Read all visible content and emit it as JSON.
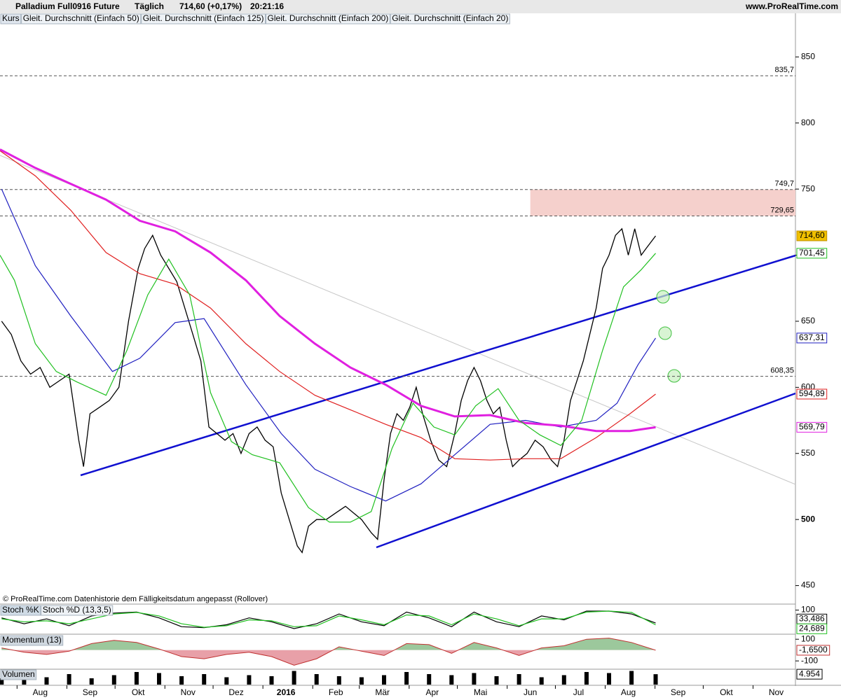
{
  "header": {
    "title": "Palladium Full0916 Future",
    "period": "Täglich",
    "quote": "714,60 (+0,17%)",
    "time": "20:21:16",
    "brand": "www.ProRealTime.com",
    "note": "© ProRealTime.com  Datenhistorie dem Fälligkeitsdatum angepasst (Rollover)"
  },
  "chart_data": [
    {
      "type": "line",
      "panel": "main",
      "xlim": [
        -25,
        470
      ],
      "ylim": [
        436,
        883
      ],
      "yticks": [
        450,
        500,
        550,
        600,
        650,
        700,
        750,
        800,
        850
      ],
      "xticks": [
        {
          "value": 0,
          "label": "Aug"
        },
        {
          "value": 31,
          "label": "Sep"
        },
        {
          "value": 61,
          "label": "Okt"
        },
        {
          "value": 92,
          "label": "Nov"
        },
        {
          "value": 122,
          "label": "Dez"
        },
        {
          "value": 153,
          "label": "2016"
        },
        {
          "value": 184,
          "label": "Feb"
        },
        {
          "value": 213,
          "label": "Mär"
        },
        {
          "value": 244,
          "label": "Apr"
        },
        {
          "value": 274,
          "label": "Mai"
        },
        {
          "value": 305,
          "label": "Jun"
        },
        {
          "value": 335,
          "label": "Jul"
        },
        {
          "value": 366,
          "label": "Aug"
        },
        {
          "value": 397,
          "label": "Sep"
        },
        {
          "value": 427,
          "label": "Okt"
        },
        {
          "value": 458,
          "label": "Nov"
        }
      ],
      "levels": [
        {
          "value": 835.7,
          "label": "835,7"
        },
        {
          "value": 749.7,
          "label": "749,7"
        },
        {
          "value": 729.65,
          "label": "729,65"
        },
        {
          "value": 608.35,
          "label": "608,35"
        }
      ],
      "zone_start": 305,
      "series": [
        {
          "name": "Kurs",
          "color": "#000000",
          "end_label": "714,60",
          "x": [
            -24,
            -18,
            -12,
            -6,
            0,
            6,
            12,
            18,
            24,
            27,
            31,
            37,
            43,
            49,
            55,
            61,
            65,
            70,
            75,
            80,
            85,
            90,
            95,
            100,
            105,
            110,
            115,
            120,
            125,
            130,
            135,
            140,
            145,
            150,
            155,
            160,
            163,
            167,
            172,
            178,
            184,
            190,
            195,
            200,
            206,
            210,
            214,
            218,
            222,
            226,
            230,
            234,
            238,
            243,
            248,
            253,
            258,
            262,
            266,
            270,
            274,
            278,
            282,
            286,
            290,
            294,
            298,
            303,
            308,
            313,
            318,
            322,
            326,
            330,
            334,
            338,
            342,
            346,
            350,
            354,
            358,
            362,
            366,
            370,
            374,
            377,
            383
          ],
          "values": [
            650,
            640,
            620,
            610,
            615,
            600,
            605,
            610,
            560,
            540,
            580,
            585,
            590,
            600,
            650,
            690,
            705,
            715,
            700,
            690,
            680,
            660,
            640,
            620,
            570,
            565,
            560,
            565,
            550,
            565,
            570,
            560,
            555,
            520,
            500,
            480,
            475,
            495,
            500,
            500,
            505,
            510,
            505,
            500,
            490,
            485,
            530,
            565,
            580,
            575,
            585,
            600,
            580,
            560,
            545,
            540,
            565,
            590,
            605,
            615,
            605,
            590,
            580,
            585,
            560,
            540,
            545,
            550,
            560,
            555,
            545,
            540,
            560,
            590,
            605,
            620,
            640,
            660,
            690,
            700,
            715,
            720,
            700,
            720,
            700,
            705,
            714.6
          ]
        },
        {
          "name": "Gleit. Durchschnitt (Einfach 50)",
          "color": "#2020c0",
          "end_label": "637,31",
          "x": [
            -24,
            -3,
            19,
            45,
            62,
            84,
            102,
            128,
            150,
            171,
            193,
            215,
            237,
            258,
            280,
            302,
            324,
            346,
            359,
            372,
            383
          ],
          "values": [
            750,
            692,
            654,
            612,
            622,
            649,
            652,
            602,
            565,
            538,
            525,
            514,
            527,
            549,
            572,
            575,
            570,
            575,
            588,
            617,
            637.31
          ]
        },
        {
          "name": "Gleit. Durchschnitt (Einfach 125)",
          "color": "#e02020",
          "end_label": "594,89",
          "x": [
            -25,
            -3,
            19,
            41,
            62,
            84,
            106,
            128,
            149,
            171,
            193,
            215,
            237,
            258,
            280,
            302,
            324,
            346,
            367,
            383
          ],
          "values": [
            779,
            760,
            734,
            702,
            686,
            678,
            660,
            633,
            612,
            594,
            583,
            572,
            562,
            546,
            545,
            546,
            546,
            562,
            580,
            594.89
          ]
        },
        {
          "name": "Gleit. Durchschnitt (Einfach 200)",
          "color": "#e020e0",
          "end_label": "569,79",
          "x": [
            -25,
            -3,
            19,
            41,
            62,
            84,
            106,
            128,
            149,
            171,
            193,
            215,
            237,
            258,
            280,
            302,
            324,
            346,
            367,
            383
          ],
          "values": [
            780,
            766,
            754,
            742,
            726,
            718,
            702,
            681,
            654,
            633,
            615,
            602,
            586,
            578,
            579,
            573,
            571,
            567,
            567,
            569.79
          ]
        },
        {
          "name": "Gleit. Durchschnitt (Einfach 20)",
          "color": "#20c020",
          "end_label": "701,45",
          "x": [
            -25,
            -16,
            -3,
            10,
            23,
            41,
            54,
            67,
            80,
            93,
            106,
            119,
            132,
            149,
            167,
            180,
            193,
            206,
            219,
            232,
            245,
            258,
            271,
            285,
            298,
            311,
            324,
            337,
            350,
            363,
            374,
            383
          ],
          "values": [
            700,
            681,
            633,
            612,
            604,
            594,
            628,
            670,
            697,
            670,
            596,
            559,
            549,
            543,
            509,
            498,
            498,
            506,
            554,
            588,
            570,
            564,
            586,
            599,
            575,
            564,
            556,
            575,
            628,
            676,
            689,
            701.45
          ]
        }
      ]
    },
    {
      "type": "line",
      "panel": "stoch",
      "xlim": [
        -25,
        470
      ],
      "ylim": [
        -20,
        120
      ],
      "yticks": [
        100
      ],
      "series": [
        {
          "name": "Stoch %K",
          "color": "#000000",
          "end_label": "33,486",
          "x": [
            -24,
            -10,
            4,
            18,
            32,
            46,
            60,
            74,
            88,
            102,
            116,
            130,
            144,
            158,
            172,
            186,
            200,
            214,
            228,
            242,
            256,
            270,
            284,
            298,
            312,
            326,
            340,
            354,
            368,
            383
          ],
          "values": [
            60,
            30,
            55,
            20,
            70,
            85,
            90,
            60,
            15,
            10,
            25,
            60,
            40,
            5,
            30,
            80,
            40,
            20,
            90,
            60,
            15,
            90,
            40,
            15,
            70,
            50,
            95,
            95,
            80,
            33.486
          ]
        },
        {
          "name": "Stoch %D (13,3,5)",
          "color": "#20c020",
          "end_label": "24,689",
          "x": [
            -24,
            -10,
            4,
            18,
            32,
            46,
            60,
            74,
            88,
            102,
            116,
            130,
            144,
            158,
            172,
            186,
            200,
            214,
            228,
            242,
            256,
            270,
            284,
            298,
            312,
            326,
            340,
            354,
            368,
            383
          ],
          "values": [
            55,
            40,
            45,
            30,
            55,
            80,
            88,
            70,
            30,
            12,
            20,
            50,
            45,
            15,
            20,
            70,
            50,
            25,
            75,
            70,
            25,
            80,
            55,
            20,
            55,
            55,
            90,
            95,
            88,
            24.689
          ]
        }
      ]
    },
    {
      "type": "area",
      "panel": "momentum",
      "xlim": [
        -25,
        470
      ],
      "ylim": [
        -170,
        140
      ],
      "yticks": [
        100,
        -100
      ],
      "series": [
        {
          "name": "Momentum (13)",
          "color": "#c03030",
          "end_label": "-1,6500",
          "x": [
            -24,
            -10,
            4,
            18,
            32,
            46,
            60,
            74,
            88,
            102,
            116,
            130,
            144,
            158,
            172,
            186,
            200,
            214,
            228,
            242,
            256,
            270,
            284,
            298,
            312,
            326,
            340,
            354,
            368,
            383
          ],
          "values": [
            20,
            -20,
            -40,
            -10,
            60,
            90,
            70,
            10,
            -60,
            -80,
            -40,
            -20,
            -60,
            -140,
            -80,
            30,
            -10,
            -50,
            60,
            50,
            -30,
            70,
            20,
            -50,
            20,
            40,
            100,
            110,
            70,
            -1.65
          ]
        }
      ]
    },
    {
      "type": "bar",
      "panel": "volume",
      "xlim": [
        -25,
        470
      ],
      "ylim": [
        0,
        7000
      ],
      "series": [
        {
          "name": "Volumen",
          "color": "#000000",
          "end_label": "4.954",
          "x": [
            -24,
            -10,
            4,
            18,
            32,
            46,
            60,
            74,
            88,
            102,
            116,
            130,
            144,
            158,
            172,
            186,
            200,
            214,
            228,
            242,
            256,
            270,
            284,
            298,
            312,
            326,
            340,
            354,
            368,
            383
          ],
          "values": [
            3000,
            4000,
            3500,
            5000,
            3000,
            4500,
            6000,
            5500,
            4000,
            5000,
            3500,
            4500,
            4000,
            6500,
            5000,
            4000,
            3500,
            4500,
            6000,
            5000,
            4500,
            5500,
            4000,
            5000,
            3500,
            4500,
            6000,
            5500,
            6500,
            4954
          ]
        }
      ]
    }
  ]
}
